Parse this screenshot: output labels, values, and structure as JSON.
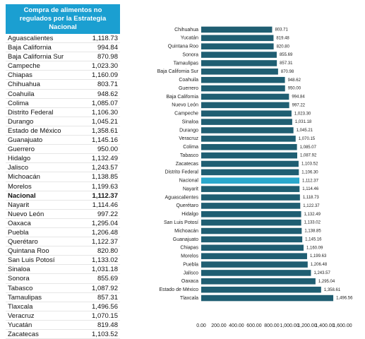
{
  "table": {
    "title": "Compra de alimentos no regulados por la Estrategia Nacional",
    "header_color": "#1b9fd1",
    "bold_rows": [
      17
    ],
    "rows": [
      [
        "Aguascalientes",
        "1,118.73"
      ],
      [
        "Baja California",
        "994.84"
      ],
      [
        "Baja California Sur",
        "870.98"
      ],
      [
        "Campeche",
        "1,023.30"
      ],
      [
        "Chiapas",
        "1,160.09"
      ],
      [
        "Chihuahua",
        "803.71"
      ],
      [
        "Coahuila",
        "948.62"
      ],
      [
        "Colima",
        "1,085.07"
      ],
      [
        "Distrito Federal",
        "1,106.30"
      ],
      [
        "Durango",
        "1,045.21"
      ],
      [
        "Estado de México",
        "1,358.61"
      ],
      [
        "Guanajuato",
        "1,145.16"
      ],
      [
        "Guerrero",
        "950.00"
      ],
      [
        "Hidalgo",
        "1,132.49"
      ],
      [
        "Jalisco",
        "1,243.57"
      ],
      [
        "Michoacán",
        "1,138.85"
      ],
      [
        "Morelos",
        "1,199.63"
      ],
      [
        "Nacional",
        "1,112.37"
      ],
      [
        "Nayarit",
        "1,114.46"
      ],
      [
        "Nuevo León",
        "997.22"
      ],
      [
        "Oaxaca",
        "1,295.04"
      ],
      [
        "Puebla",
        "1,206.48"
      ],
      [
        "Querétaro",
        "1,122.37"
      ],
      [
        "Quintana Roo",
        "820.80"
      ],
      [
        "San Luis Potosí",
        "1,133.02"
      ],
      [
        "Sinaloa",
        "1,031.18"
      ],
      [
        "Sonora",
        "855.69"
      ],
      [
        "Tabasco",
        "1,087.92"
      ],
      [
        "Tamaulipas",
        "857.31"
      ],
      [
        "Tlaxcala",
        "1,496.56"
      ],
      [
        "Veracruz",
        "1,070.15"
      ],
      [
        "Yucatán",
        "819.48"
      ],
      [
        "Zacatecas",
        "1,103.52"
      ]
    ]
  },
  "chart_data": {
    "type": "hbar",
    "categories": [
      "Chihuahua",
      "Yucatán",
      "Quintana Roo",
      "Sonora",
      "Tamaulipas",
      "Baja California Sur",
      "Coahuila",
      "Guerrero",
      "Baja California",
      "Nuevo León",
      "Campeche",
      "Sinaloa",
      "Durango",
      "Veracruz",
      "Colima",
      "Tabasco",
      "Zacatecas",
      "Distrito Federal",
      "Nacional",
      "Nayarit",
      "Aguascalientes",
      "Querétaro",
      "Hidalgo",
      "San Luis Potosí",
      "Michoacán",
      "Guanajuato",
      "Chiapas",
      "Morelos",
      "Puebla",
      "Jalisco",
      "Oaxaca",
      "Estado de México",
      "Tlaxcala"
    ],
    "values": [
      803.71,
      819.48,
      820.8,
      855.69,
      857.31,
      870.98,
      948.62,
      950.0,
      994.84,
      997.22,
      1023.3,
      1031.18,
      1045.21,
      1070.15,
      1085.07,
      1087.92,
      1103.52,
      1106.3,
      1112.37,
      1114.46,
      1118.73,
      1122.37,
      1132.49,
      1133.02,
      1138.85,
      1145.16,
      1160.09,
      1199.63,
      1206.48,
      1243.57,
      1295.04,
      1358.61,
      1496.56
    ],
    "value_labels": [
      "803.71",
      "819.48",
      "820.80",
      "855.69",
      "857.31",
      "870.98",
      "948.62",
      "950.00",
      "994.84",
      "997.22",
      "1,023.30",
      "1,031.18",
      "1,045.21",
      "1,070.15",
      "1,085.07",
      "1,087.92",
      "1,103.52",
      "1,106.30",
      "1,112.37",
      "1,114.46",
      "1,118.73",
      "1,122.37",
      "1,132.49",
      "1,133.02",
      "1,138.85",
      "1,145.16",
      "1,160.09",
      "1,199.63",
      "1,206.48",
      "1,243.57",
      "1,295.04",
      "1,358.61",
      "1,496.56"
    ],
    "color": "#1f5e72",
    "highlight_index": 18,
    "highlight_color": "#2aa8cc",
    "xlim": [
      0,
      1600
    ],
    "xticks": [
      {
        "value": 0,
        "label": "0.00"
      },
      {
        "value": 200,
        "label": "200.00"
      },
      {
        "value": 400,
        "label": "400.00"
      },
      {
        "value": 600,
        "label": "600.00"
      },
      {
        "value": 800,
        "label": "800.00"
      },
      {
        "value": 1000,
        "label": "1,000.00"
      },
      {
        "value": 1200,
        "label": "1,200.00"
      },
      {
        "value": 1400,
        "label": "1,400.00"
      },
      {
        "value": 1600,
        "label": "1,600.00"
      }
    ]
  }
}
